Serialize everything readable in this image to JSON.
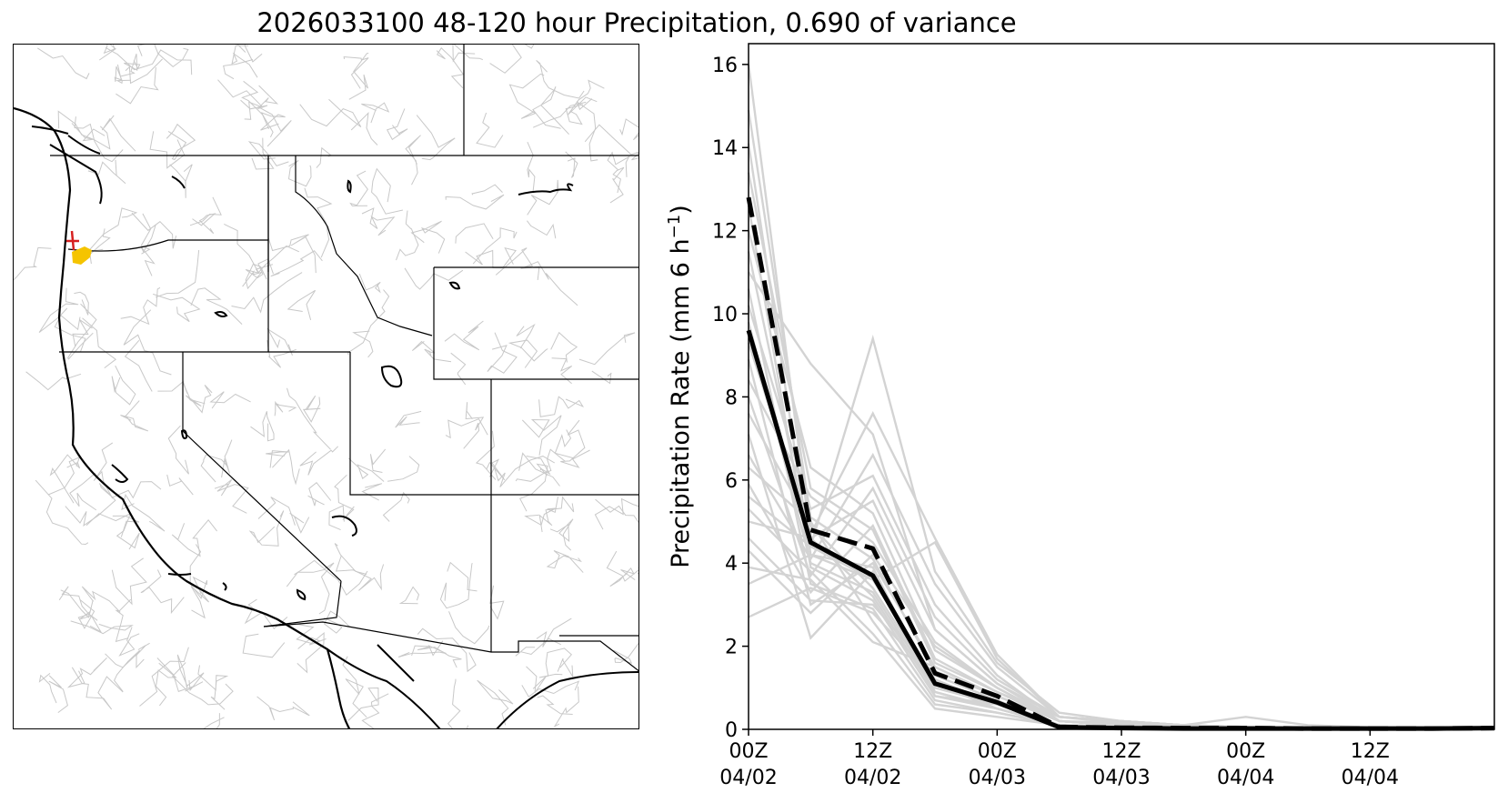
{
  "title": "2026033100 48-120 hour Precipitation, 0.690 of variance",
  "map": {
    "highlight_colors": {
      "basin": "#f5c400",
      "outlet": "#d62020"
    }
  },
  "chart_data": {
    "type": "line",
    "title": "2026033100 48-120 hour Precipitation, 0.690 of variance",
    "xlabel": "",
    "ylabel": "Precipitation Rate (mm 6 h",
    "ylabel_sup": "−1",
    "ylabel_close": ")",
    "x": [
      "04/02 00Z",
      "04/02 06Z",
      "04/02 12Z",
      "04/02 18Z",
      "04/03 00Z",
      "04/03 06Z",
      "04/03 12Z",
      "04/03 18Z",
      "04/04 00Z",
      "04/04 06Z",
      "04/04 12Z",
      "04/04 18Z",
      "04/05 00Z"
    ],
    "x_ticks": [
      {
        "line1": "00Z",
        "line2": "04/02"
      },
      {
        "line1": "12Z",
        "line2": "04/02"
      },
      {
        "line1": "00Z",
        "line2": "04/03"
      },
      {
        "line1": "12Z",
        "line2": "04/03"
      },
      {
        "line1": "00Z",
        "line2": "04/04"
      },
      {
        "line1": "12Z",
        "line2": "04/04"
      }
    ],
    "y_ticks": [
      "0",
      "2",
      "4",
      "6",
      "8",
      "10",
      "12",
      "14",
      "16"
    ],
    "ylim": [
      0,
      16.5
    ],
    "grid": false,
    "legend": "none",
    "series": [
      {
        "style": "solid",
        "color": "#000000",
        "values": [
          9.6,
          4.5,
          3.7,
          1.1,
          0.65,
          0.05,
          0.03,
          0.02,
          0.02,
          0.02,
          0.02,
          0.02,
          0.03
        ]
      },
      {
        "style": "dashed",
        "color": "#000000",
        "values": [
          12.8,
          4.8,
          4.35,
          1.35,
          0.8,
          0.06,
          0.04,
          0.03,
          0.03,
          0.02,
          0.02,
          0.02,
          0.03
        ]
      }
    ],
    "ensemble": {
      "color": "#d3d3d3",
      "members": [
        [
          16.0,
          4.6,
          3.2,
          0.9,
          0.5,
          0.1,
          0.05,
          0.05,
          0.04,
          0.03,
          0.02,
          0.02,
          0.02
        ],
        [
          14.9,
          5.1,
          4.1,
          1.4,
          0.8,
          0.2,
          0.1,
          0.06,
          0.05,
          0.04,
          0.03,
          0.03,
          0.03
        ],
        [
          14.1,
          4.2,
          3.6,
          1.2,
          0.6,
          0.1,
          0.08,
          0.06,
          0.05,
          0.04,
          0.03,
          0.03,
          0.03
        ],
        [
          13.4,
          5.8,
          4.8,
          1.6,
          0.9,
          0.3,
          0.2,
          0.1,
          0.06,
          0.04,
          0.03,
          0.03,
          0.03
        ],
        [
          12.6,
          3.9,
          3.1,
          0.8,
          0.5,
          0.1,
          0.05,
          0.04,
          0.03,
          0.03,
          0.02,
          0.02,
          0.02
        ],
        [
          12.0,
          6.3,
          5.2,
          1.9,
          1.0,
          0.2,
          0.15,
          0.1,
          0.3,
          0.1,
          0.05,
          0.04,
          0.03
        ],
        [
          11.5,
          4.4,
          9.4,
          3.8,
          1.6,
          0.4,
          0.2,
          0.1,
          0.05,
          0.04,
          0.03,
          0.03,
          0.03
        ],
        [
          11.0,
          8.8,
          7.1,
          2.4,
          1.1,
          0.3,
          0.2,
          0.1,
          0.06,
          0.04,
          0.03,
          0.03,
          0.03
        ],
        [
          10.6,
          3.5,
          2.9,
          0.7,
          0.4,
          0.1,
          0.05,
          0.04,
          0.03,
          0.03,
          0.02,
          0.02,
          0.02
        ],
        [
          10.2,
          5.3,
          6.1,
          3.0,
          1.3,
          0.2,
          0.1,
          0.08,
          0.05,
          0.04,
          0.03,
          0.03,
          0.03
        ],
        [
          9.8,
          4.0,
          3.3,
          1.0,
          0.6,
          0.1,
          0.06,
          0.05,
          0.04,
          0.03,
          0.02,
          0.02,
          0.02
        ],
        [
          9.3,
          4.7,
          7.6,
          4.6,
          1.8,
          0.3,
          0.2,
          0.1,
          0.06,
          0.04,
          0.03,
          0.03,
          0.03
        ],
        [
          8.9,
          3.0,
          4.0,
          1.5,
          0.8,
          0.2,
          0.1,
          0.06,
          0.05,
          0.04,
          0.03,
          0.03,
          0.03
        ],
        [
          8.4,
          5.6,
          4.5,
          2.1,
          1.0,
          0.2,
          0.1,
          0.08,
          0.05,
          0.04,
          0.03,
          0.03,
          0.03
        ],
        [
          8.0,
          3.7,
          5.8,
          2.7,
          1.2,
          0.3,
          0.15,
          0.1,
          0.06,
          0.04,
          0.03,
          0.03,
          0.03
        ],
        [
          7.6,
          4.9,
          3.4,
          1.1,
          0.5,
          0.1,
          0.05,
          0.04,
          0.03,
          0.03,
          0.02,
          0.02,
          0.02
        ],
        [
          7.1,
          2.2,
          3.8,
          0.8,
          0.6,
          0.1,
          0.06,
          0.05,
          0.04,
          0.03,
          0.02,
          0.02,
          0.02
        ],
        [
          6.6,
          4.1,
          6.6,
          3.5,
          1.5,
          0.3,
          0.2,
          0.1,
          0.06,
          0.04,
          0.03,
          0.03,
          0.03
        ],
        [
          6.3,
          5.0,
          2.6,
          0.6,
          0.4,
          0.1,
          0.05,
          0.04,
          0.03,
          0.03,
          0.02,
          0.02,
          0.02
        ],
        [
          5.9,
          3.3,
          4.9,
          1.7,
          0.9,
          0.2,
          0.1,
          0.06,
          0.05,
          0.04,
          0.03,
          0.03,
          0.03
        ],
        [
          5.6,
          4.4,
          3.6,
          4.5,
          1.7,
          0.3,
          0.2,
          0.1,
          0.05,
          0.04,
          0.03,
          0.03,
          0.03
        ],
        [
          5.3,
          3.8,
          2.3,
          0.5,
          0.3,
          0.1,
          0.05,
          0.04,
          0.03,
          0.03,
          0.02,
          0.02,
          0.02
        ],
        [
          5.0,
          4.6,
          5.5,
          2.4,
          1.1,
          0.2,
          0.1,
          0.08,
          0.05,
          0.04,
          0.03,
          0.03,
          0.03
        ],
        [
          4.6,
          3.1,
          3.0,
          1.3,
          0.7,
          0.1,
          0.06,
          0.05,
          0.04,
          0.03,
          0.02,
          0.02,
          0.02
        ],
        [
          4.3,
          2.8,
          4.2,
          2.0,
          1.0,
          0.2,
          0.1,
          0.06,
          0.05,
          0.04,
          0.03,
          0.03,
          0.03
        ],
        [
          3.9,
          3.6,
          2.1,
          1.5,
          0.8,
          0.2,
          0.1,
          0.06,
          0.05,
          0.04,
          0.03,
          0.03,
          0.03
        ],
        [
          3.5,
          4.2,
          3.9,
          0.9,
          0.5,
          0.1,
          0.05,
          0.04,
          0.03,
          0.03,
          0.02,
          0.02,
          0.02
        ],
        [
          2.7,
          3.4,
          2.8,
          1.2,
          0.6,
          0.1,
          0.06,
          0.05,
          0.04,
          0.03,
          0.02,
          0.02,
          0.02
        ]
      ]
    }
  }
}
